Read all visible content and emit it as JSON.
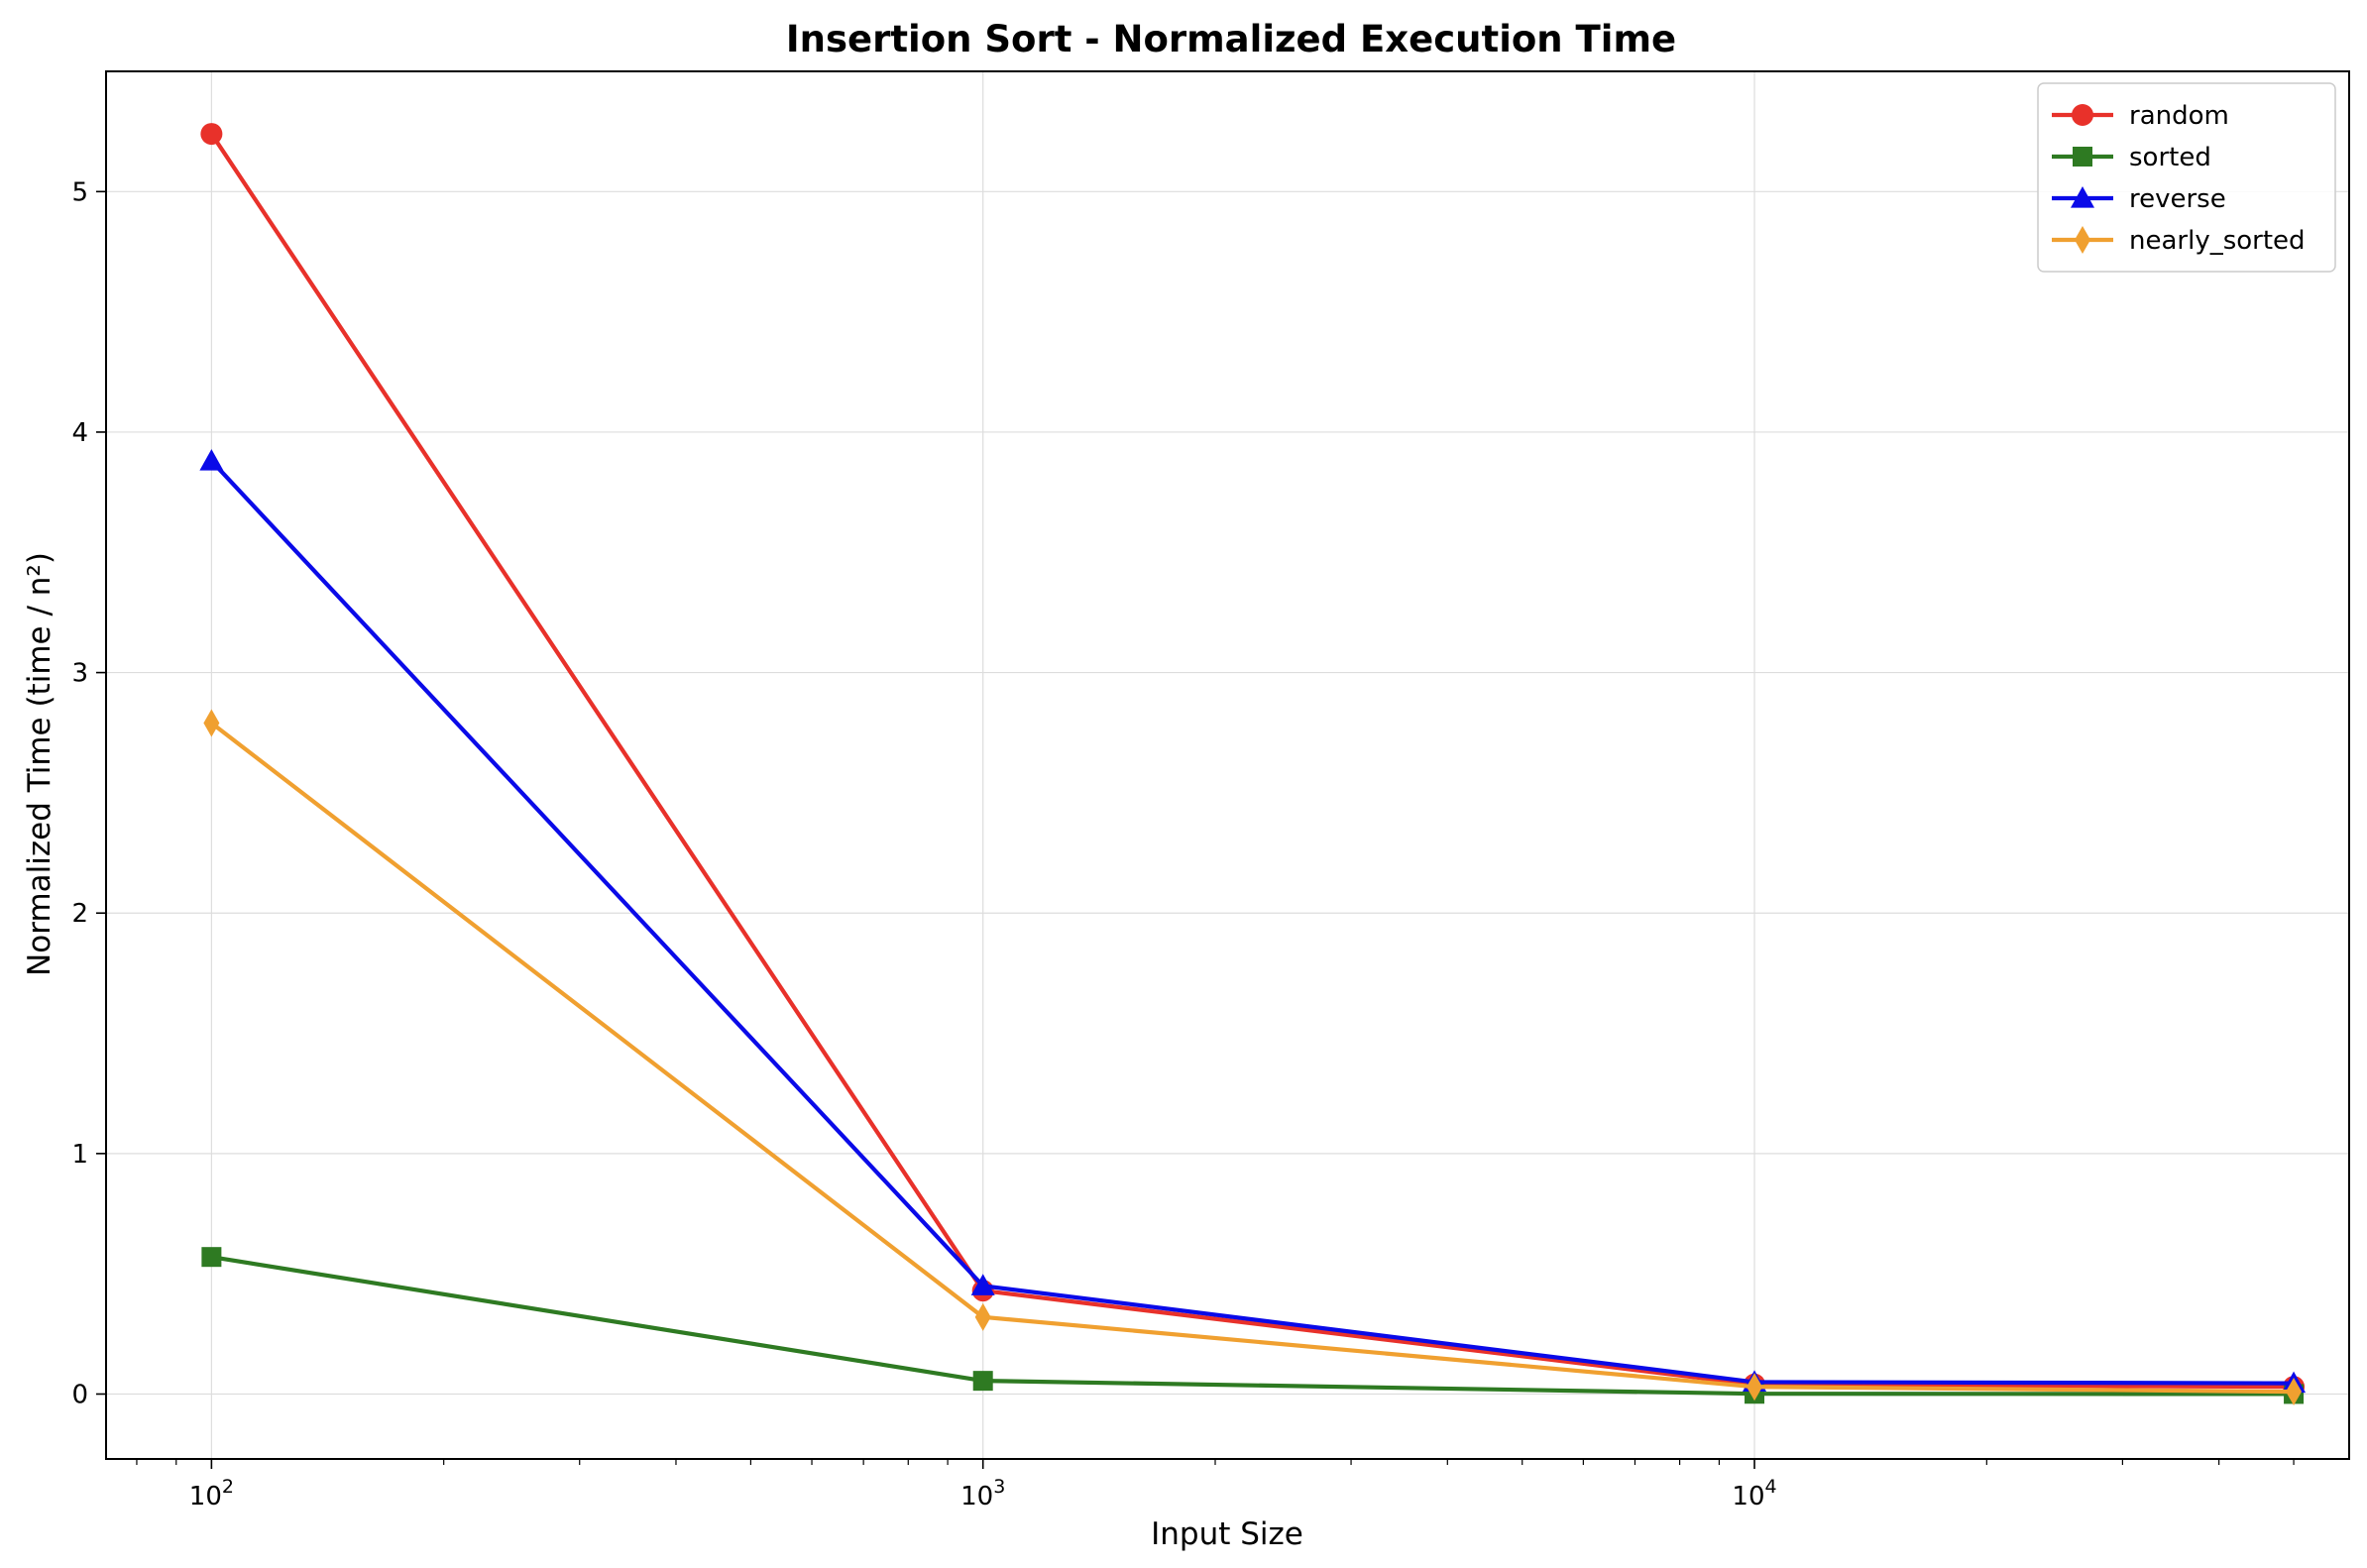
{
  "chart_data": {
    "type": "line",
    "title": "Insertion Sort - Normalized Execution Time",
    "xlabel": "Input Size",
    "ylabel": "Normalized Time (time / n²)",
    "xscale": "log",
    "xlim": [
      73,
      59000
    ],
    "ylim": [
      -0.27,
      5.5
    ],
    "x": [
      100,
      1000,
      10000,
      50000
    ],
    "x_ticks": [
      {
        "value": 100,
        "base": "10",
        "exp": "2"
      },
      {
        "value": 1000,
        "base": "10",
        "exp": "3"
      },
      {
        "value": 10000,
        "base": "10",
        "exp": "4"
      }
    ],
    "y_ticks": [
      {
        "value": 0,
        "label": "0"
      },
      {
        "value": 1,
        "label": "1"
      },
      {
        "value": 2,
        "label": "2"
      },
      {
        "value": 3,
        "label": "3"
      },
      {
        "value": 4,
        "label": "4"
      },
      {
        "value": 5,
        "label": "5"
      }
    ],
    "grid": true,
    "legend_position": "top-right",
    "series": [
      {
        "name": "random",
        "color": "#e8312a",
        "marker": "circle",
        "values": [
          5.24,
          0.43,
          0.04,
          0.03
        ]
      },
      {
        "name": "sorted",
        "color": "#2e7a22",
        "marker": "square",
        "values": [
          0.57,
          0.055,
          0.001,
          0.0003
        ]
      },
      {
        "name": "reverse",
        "color": "#0a0ae8",
        "marker": "triangle",
        "values": [
          3.88,
          0.45,
          0.05,
          0.045
        ]
      },
      {
        "name": "nearly_sorted",
        "color": "#f0a030",
        "marker": "diamond",
        "values": [
          2.79,
          0.32,
          0.03,
          0.01
        ]
      }
    ]
  }
}
